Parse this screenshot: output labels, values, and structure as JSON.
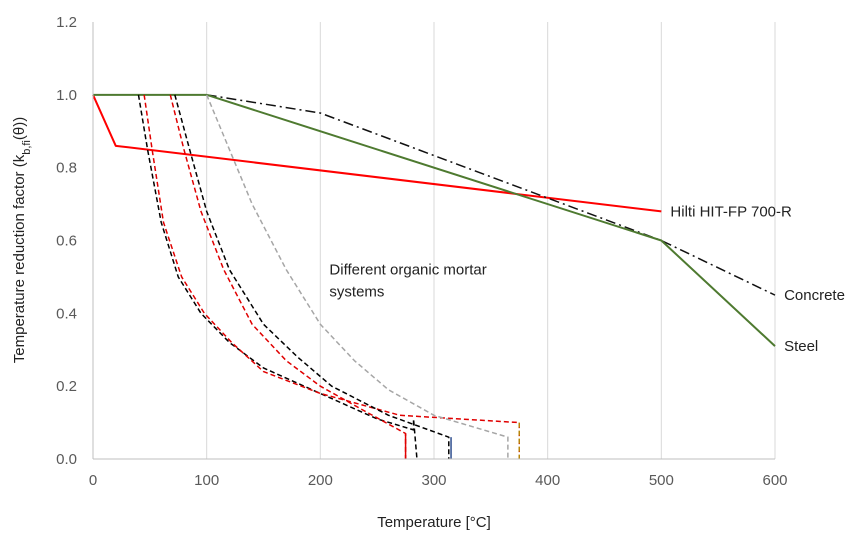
{
  "chart_data": {
    "type": "line",
    "title": "",
    "xlabel": "Temperature [°C]",
    "ylabel": {
      "main": "Temperature reduction factor (k",
      "sub": "b,fi",
      "tail": "(θ))"
    },
    "xlim": [
      0,
      600
    ],
    "ylim": [
      0,
      1.2
    ],
    "xticks": [
      0,
      100,
      200,
      300,
      400,
      500,
      600
    ],
    "yticks": [
      0.0,
      0.2,
      0.4,
      0.6,
      0.8,
      1.0,
      1.2
    ],
    "xtick_labels": [
      "0",
      "100",
      "200",
      "300",
      "400",
      "500",
      "600"
    ],
    "ytick_labels": [
      "0.0",
      "0.2",
      "0.4",
      "0.6",
      "0.8",
      "1.0",
      "1.2"
    ],
    "grid": "vertical",
    "annotations": [
      {
        "text": "Different organic mortar",
        "x": 208,
        "y": 0.52
      },
      {
        "text": "systems",
        "x": 208,
        "y": 0.46
      }
    ],
    "series": [
      {
        "name": "Hilti HIT-FP 700-R",
        "color": "#ff0000",
        "style": "solid",
        "points": [
          [
            0,
            1.0
          ],
          [
            20,
            0.86
          ],
          [
            500,
            0.68
          ]
        ]
      },
      {
        "name": "Concrete",
        "color": "#111111",
        "style": "dashdot",
        "points": [
          [
            100,
            1.0
          ],
          [
            200,
            0.95
          ],
          [
            500,
            0.6
          ],
          [
            600,
            0.45
          ]
        ]
      },
      {
        "name": "Steel",
        "color": "#4e7a30",
        "style": "solid",
        "points": [
          [
            0,
            1.0
          ],
          [
            100,
            1.0
          ],
          [
            500,
            0.6
          ],
          [
            600,
            0.31
          ]
        ]
      },
      {
        "color": "#000000",
        "style": "dashed",
        "points": [
          [
            40,
            1.0
          ],
          [
            48,
            0.85
          ],
          [
            60,
            0.65
          ],
          [
            75,
            0.5
          ],
          [
            95,
            0.4
          ],
          [
            120,
            0.32
          ],
          [
            150,
            0.25
          ],
          [
            200,
            0.18
          ],
          [
            250,
            0.11
          ],
          [
            282,
            0.08
          ],
          [
            282,
            0.11
          ],
          [
            285,
            0.0
          ]
        ]
      },
      {
        "color": "#e00000",
        "style": "dashed",
        "points": [
          [
            45,
            1.0
          ],
          [
            52,
            0.85
          ],
          [
            62,
            0.65
          ],
          [
            78,
            0.5
          ],
          [
            98,
            0.4
          ],
          [
            122,
            0.32
          ],
          [
            150,
            0.24
          ],
          [
            200,
            0.18
          ],
          [
            270,
            0.12
          ],
          [
            375,
            0.1
          ],
          [
            375,
            0.0
          ]
        ]
      },
      {
        "color": "#000000",
        "style": "dashed",
        "points": [
          [
            72,
            1.0
          ],
          [
            85,
            0.85
          ],
          [
            100,
            0.68
          ],
          [
            120,
            0.52
          ],
          [
            150,
            0.37
          ],
          [
            180,
            0.28
          ],
          [
            210,
            0.2
          ],
          [
            260,
            0.12
          ],
          [
            313,
            0.06
          ],
          [
            313,
            0.0
          ]
        ]
      },
      {
        "color": "#e00000",
        "style": "dashed",
        "points": [
          [
            68,
            1.0
          ],
          [
            80,
            0.85
          ],
          [
            95,
            0.68
          ],
          [
            115,
            0.52
          ],
          [
            140,
            0.37
          ],
          [
            170,
            0.27
          ],
          [
            200,
            0.2
          ],
          [
            240,
            0.13
          ],
          [
            275,
            0.07
          ],
          [
            275,
            0.0
          ]
        ]
      },
      {
        "color": "#a6a6a6",
        "style": "dashed",
        "points": [
          [
            100,
            1.0
          ],
          [
            120,
            0.85
          ],
          [
            140,
            0.7
          ],
          [
            170,
            0.52
          ],
          [
            200,
            0.37
          ],
          [
            230,
            0.27
          ],
          [
            260,
            0.19
          ],
          [
            300,
            0.12
          ],
          [
            365,
            0.06
          ],
          [
            365,
            0.0
          ]
        ]
      },
      {
        "color": "#e00000",
        "style": "solid",
        "points": [
          [
            275,
            0.07
          ],
          [
            275,
            0.0
          ]
        ]
      },
      {
        "color": "#2f4f8f",
        "style": "solid",
        "points": [
          [
            315,
            0.06
          ],
          [
            315,
            0.0
          ]
        ]
      },
      {
        "color": "#b8860b",
        "style": "dashed",
        "points": [
          [
            375,
            0.1
          ],
          [
            375,
            0.0
          ]
        ]
      }
    ],
    "labels": [
      {
        "text": "Hilti HIT-FP 700-R",
        "series": 0,
        "x": 508,
        "y": 0.68
      },
      {
        "text": "Concrete",
        "series": 1,
        "x": 608,
        "y": 0.45
      },
      {
        "text": "Steel",
        "series": 2,
        "x": 608,
        "y": 0.31
      }
    ]
  }
}
